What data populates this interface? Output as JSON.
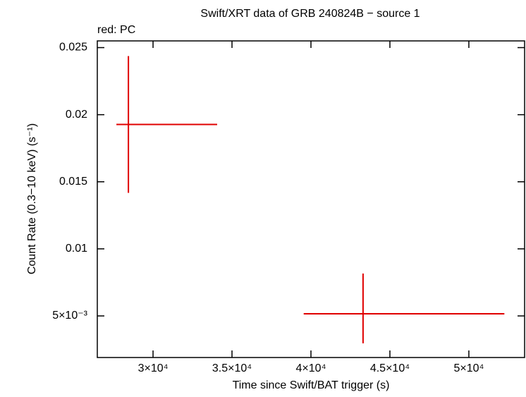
{
  "chart_data": {
    "type": "errorbar",
    "title": "Swift/XRT data of GRB 240824B − source 1",
    "subtitle": "red: PC",
    "xlabel": "Time since Swift/BAT trigger (s)",
    "ylabel": "Count Rate (0.3−10 keV) (s⁻¹)",
    "xlim": [
      26470,
      53530
    ],
    "ylim": [
      0.0019,
      0.0255
    ],
    "xticks": [
      {
        "value": 30000,
        "label": "3×10⁴"
      },
      {
        "value": 35000,
        "label": "3.5×10⁴"
      },
      {
        "value": 40000,
        "label": "4×10⁴"
      },
      {
        "value": 45000,
        "label": "4.5×10⁴"
      },
      {
        "value": 50000,
        "label": "5×10⁴"
      }
    ],
    "yticks": [
      {
        "value": 0.005,
        "label": "5×10⁻³"
      },
      0.01,
      0.015,
      0.02,
      0.025
    ],
    "series": [
      {
        "name": "PC",
        "color": "#e00000",
        "x": [
          28440,
          43300
        ],
        "values": [
          0.01927,
          0.00516
        ],
        "xerr_minus": [
          760,
          3760
        ],
        "xerr_plus": [
          5620,
          8950
        ],
        "yerr_minus": [
          0.0051,
          0.0022
        ],
        "yerr_plus": [
          0.0051,
          0.003
        ]
      }
    ]
  }
}
